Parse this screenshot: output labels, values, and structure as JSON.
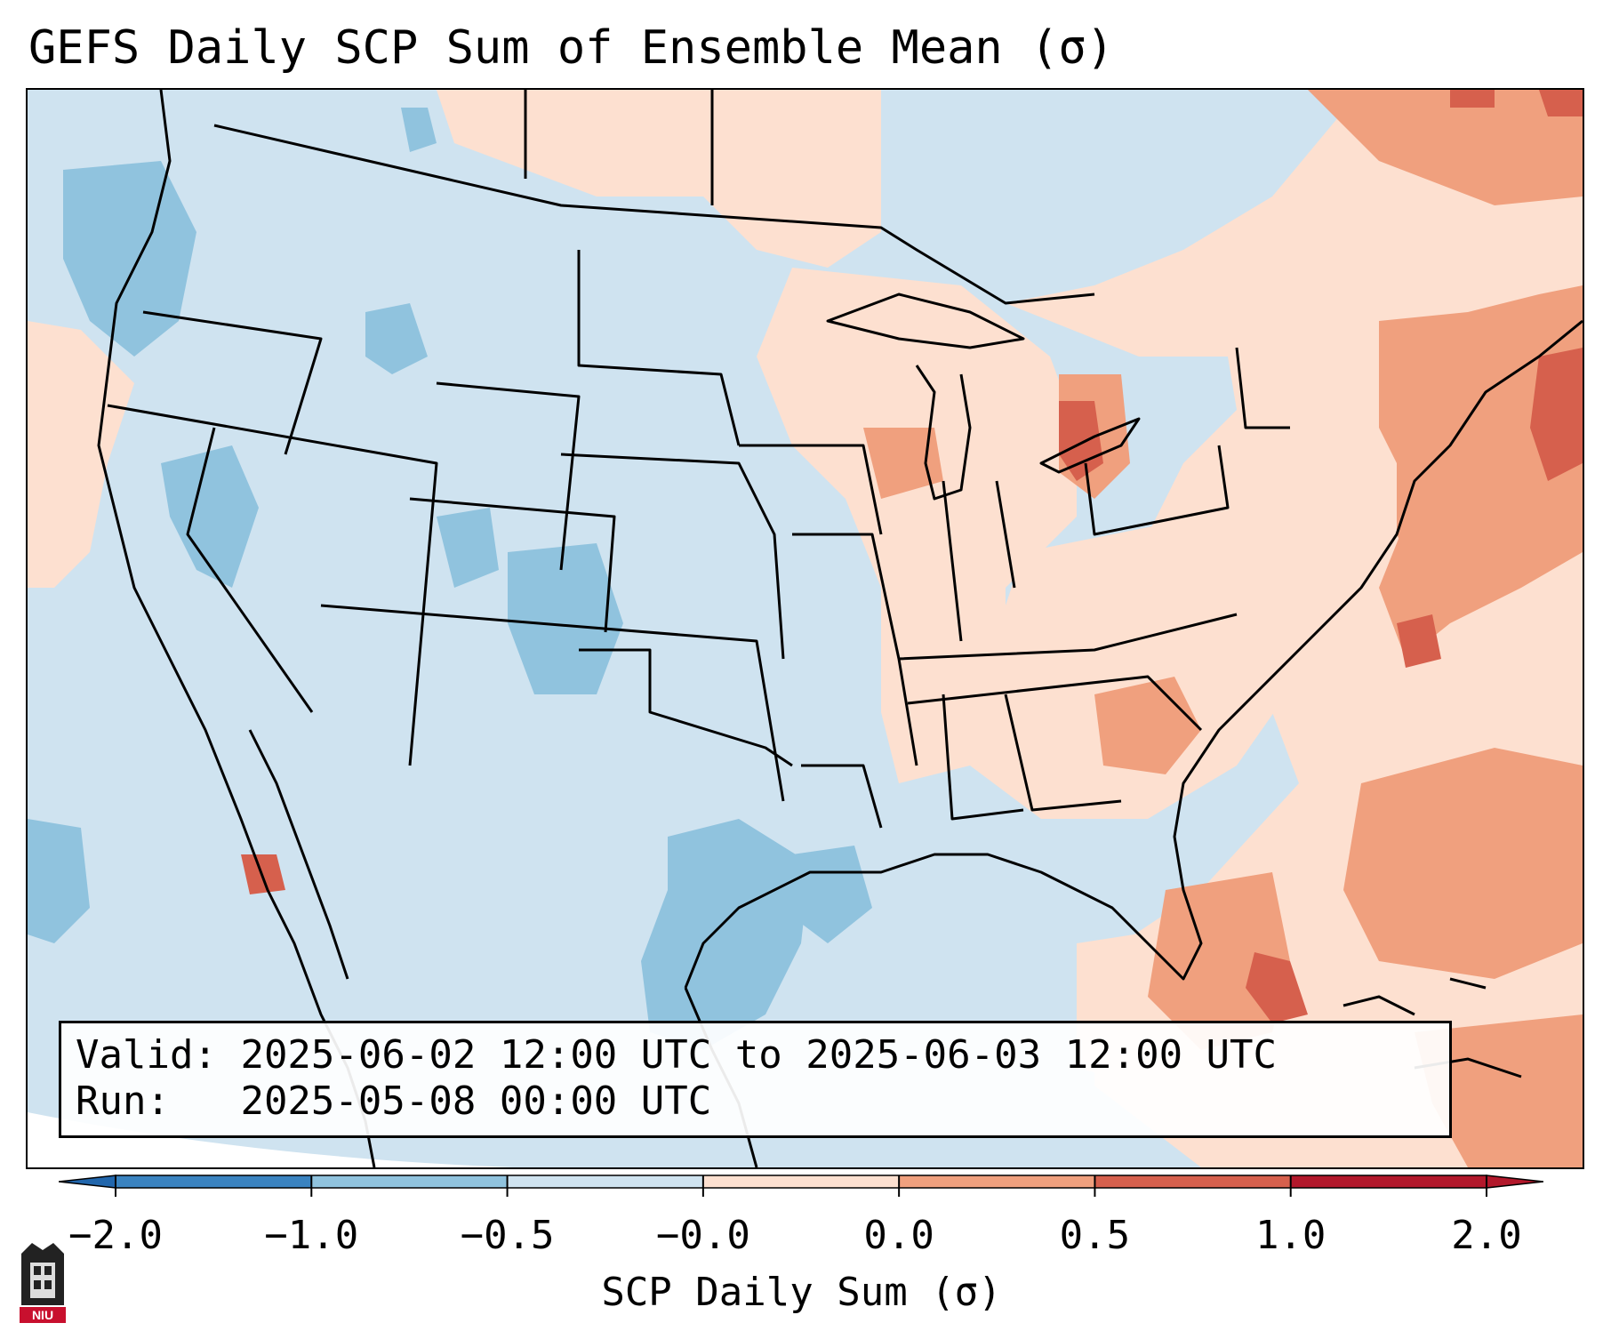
{
  "title": "GEFS Daily SCP Sum of Ensemble Mean (σ)",
  "info": {
    "valid_label": "Valid:",
    "valid_value": "2025-06-02 12:00 UTC to 2025-06-03 12:00 UTC",
    "run_label": "Run:",
    "run_value": "2025-05-08 00:00 UTC"
  },
  "colorbar": {
    "label": "SCP Daily Sum (σ)",
    "ticks": [
      "−2.0",
      "−1.0",
      "−0.5",
      "−0.0",
      "0.0",
      "0.5",
      "1.0",
      "2.0"
    ],
    "colors": [
      "#3a83c0",
      "#90c3de",
      "#cfe3f0",
      "#f2f7fb",
      "#fde0d0",
      "#f0a07e",
      "#d6604d",
      "#b2182b"
    ],
    "extend_low_color": "#2166ac",
    "extend_high_color": "#b2182b"
  },
  "logo": {
    "text": "NIU",
    "logo_color": "#c8102e"
  }
}
